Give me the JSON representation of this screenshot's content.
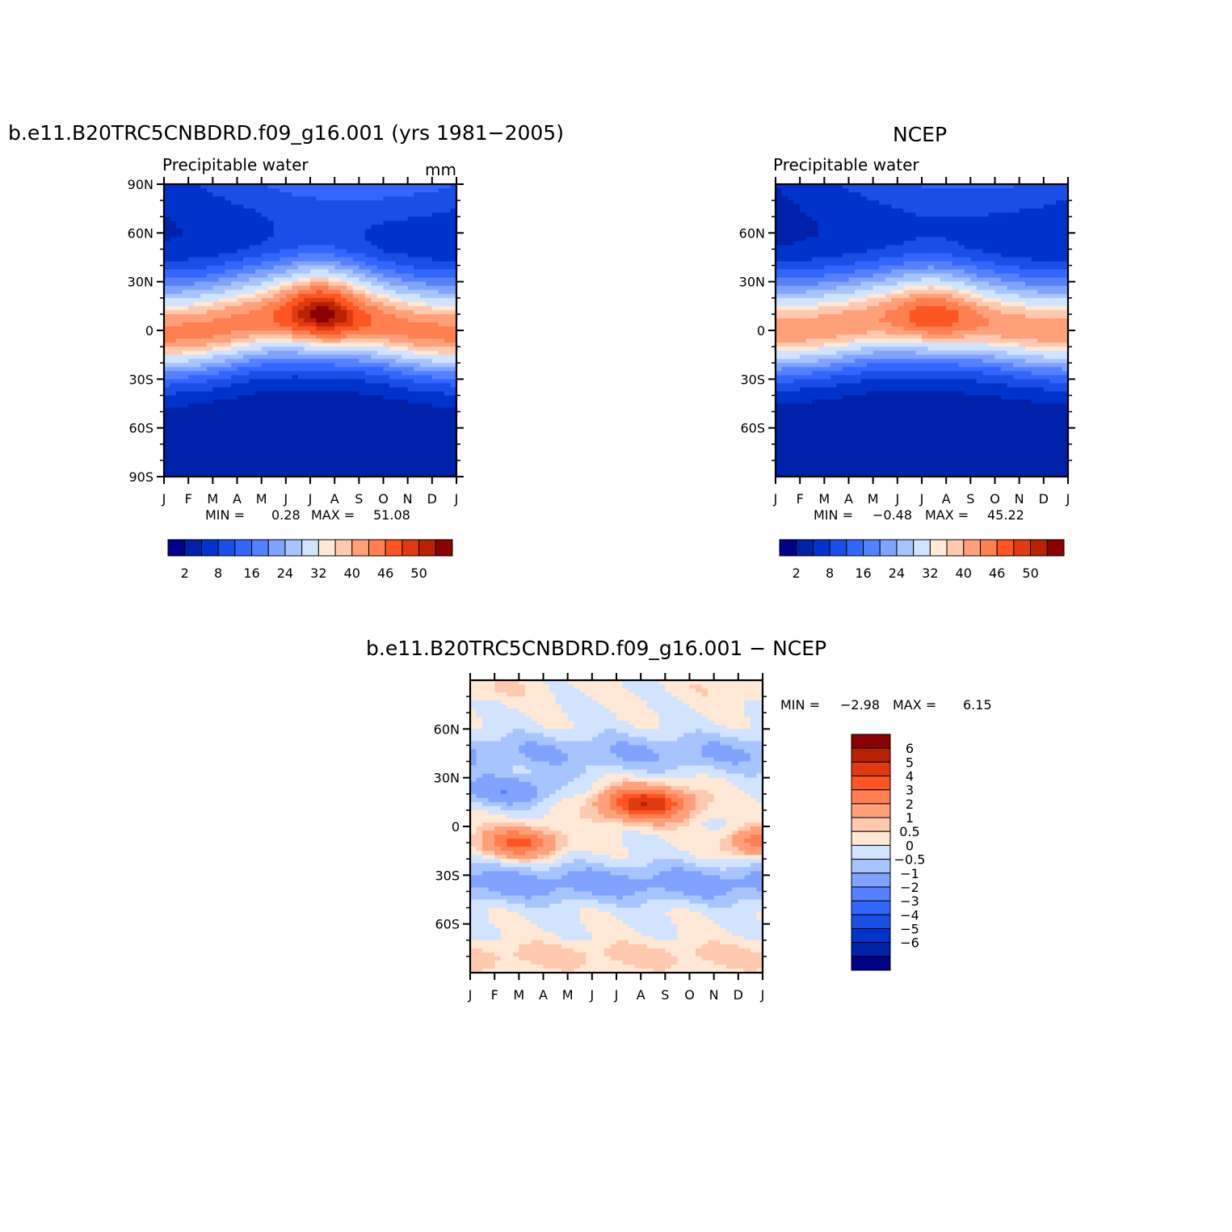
{
  "panels": {
    "model": {
      "title": "b.e11.B20TRC5CNBDRD.f09_g16.001 (yrs 1981−2005)",
      "subtitle": "Precipitable water",
      "units": "mm",
      "min_label": "MIN =",
      "min_value": "0.28",
      "max_label": "MAX =",
      "max_value": "51.08"
    },
    "ncep": {
      "title": "NCEP",
      "subtitle": "Precipitable water",
      "min_label": "MIN =",
      "min_value": "−0.48",
      "max_label": "MAX =",
      "max_value": "45.22"
    },
    "diff": {
      "title": "b.e11.B20TRC5CNBDRD.f09_g16.001 − NCEP",
      "min_label": "MIN =",
      "min_value": "−2.98",
      "max_label": "MAX =",
      "max_value": "6.15"
    }
  },
  "chart_data": [
    {
      "type": "heatmap",
      "title": "b.e11.B20TRC5CNBDRD.f09_g16.001 (yrs 1981−2005)",
      "subtitle": "Precipitable water",
      "units": "mm",
      "x_ticks": [
        "J",
        "F",
        "M",
        "A",
        "M",
        "J",
        "J",
        "A",
        "S",
        "O",
        "N",
        "D",
        "J"
      ],
      "y_ticks": [
        "90N",
        "60N",
        "30N",
        "0",
        "30S",
        "60S",
        "90S"
      ],
      "ylim": [
        -90,
        90
      ],
      "min": 0.28,
      "max": 51.08,
      "colorbar_labels": [
        "2",
        "8",
        "16",
        "24",
        "32",
        "40",
        "46",
        "50"
      ],
      "field": {
        "kind": "absolute",
        "eq_peak": 40,
        "seasonal_shift": 12,
        "amp_n": 8,
        "amp_s": 5,
        "peak_max": 51,
        "jul_peak_lat": 8
      }
    },
    {
      "type": "heatmap",
      "title": "NCEP",
      "subtitle": "Precipitable water",
      "x_ticks": [
        "J",
        "F",
        "M",
        "A",
        "M",
        "J",
        "J",
        "A",
        "S",
        "O",
        "N",
        "D",
        "J"
      ],
      "y_ticks": [
        "60N",
        "30N",
        "0",
        "30S",
        "60S"
      ],
      "ylim": [
        -90,
        90
      ],
      "min": -0.48,
      "max": 45.22,
      "colorbar_labels": [
        "2",
        "8",
        "16",
        "24",
        "32",
        "40",
        "46",
        "50"
      ],
      "field": {
        "kind": "absolute",
        "eq_peak": 38,
        "seasonal_shift": 9,
        "amp_n": 6,
        "amp_s": 4,
        "peak_max": 45,
        "jul_peak_lat": 8
      }
    },
    {
      "type": "heatmap",
      "title": "b.e11.B20TRC5CNBDRD.f09_g16.001 − NCEP",
      "x_ticks": [
        "J",
        "F",
        "M",
        "A",
        "M",
        "J",
        "J",
        "A",
        "S",
        "O",
        "N",
        "D",
        "J"
      ],
      "y_ticks": [
        "60N",
        "30N",
        "0",
        "30S",
        "60S"
      ],
      "ylim": [
        -90,
        90
      ],
      "min": -2.98,
      "max": 6.15,
      "colorbar_labels": [
        "6",
        "5",
        "4",
        "3",
        "2",
        "1",
        "0.5",
        "0",
        "−0.5",
        "−1",
        "−2",
        "−3",
        "−4",
        "−5",
        "−6"
      ],
      "field": {
        "kind": "difference"
      }
    }
  ],
  "colors": {
    "abs_scale": [
      "#00008b",
      "#0022aa",
      "#0033cc",
      "#1a4fe6",
      "#3366ff",
      "#5580ff",
      "#80a3ff",
      "#a8c4ff",
      "#d1e3ff",
      "#ffe8d6",
      "#ffc9b0",
      "#ffa07a",
      "#ff7f50",
      "#ff5522",
      "#e03a10",
      "#b82200",
      "#8b0000"
    ],
    "diff_scale": [
      "#8b0000",
      "#b82200",
      "#e03a10",
      "#ff5522",
      "#ff7f50",
      "#ffa07a",
      "#ffc9b0",
      "#ffe8d6",
      "#d1e3ff",
      "#a8c4ff",
      "#80a3ff",
      "#5580ff",
      "#3366ff",
      "#1a4fe6",
      "#0033cc",
      "#0022aa",
      "#00008b"
    ]
  }
}
